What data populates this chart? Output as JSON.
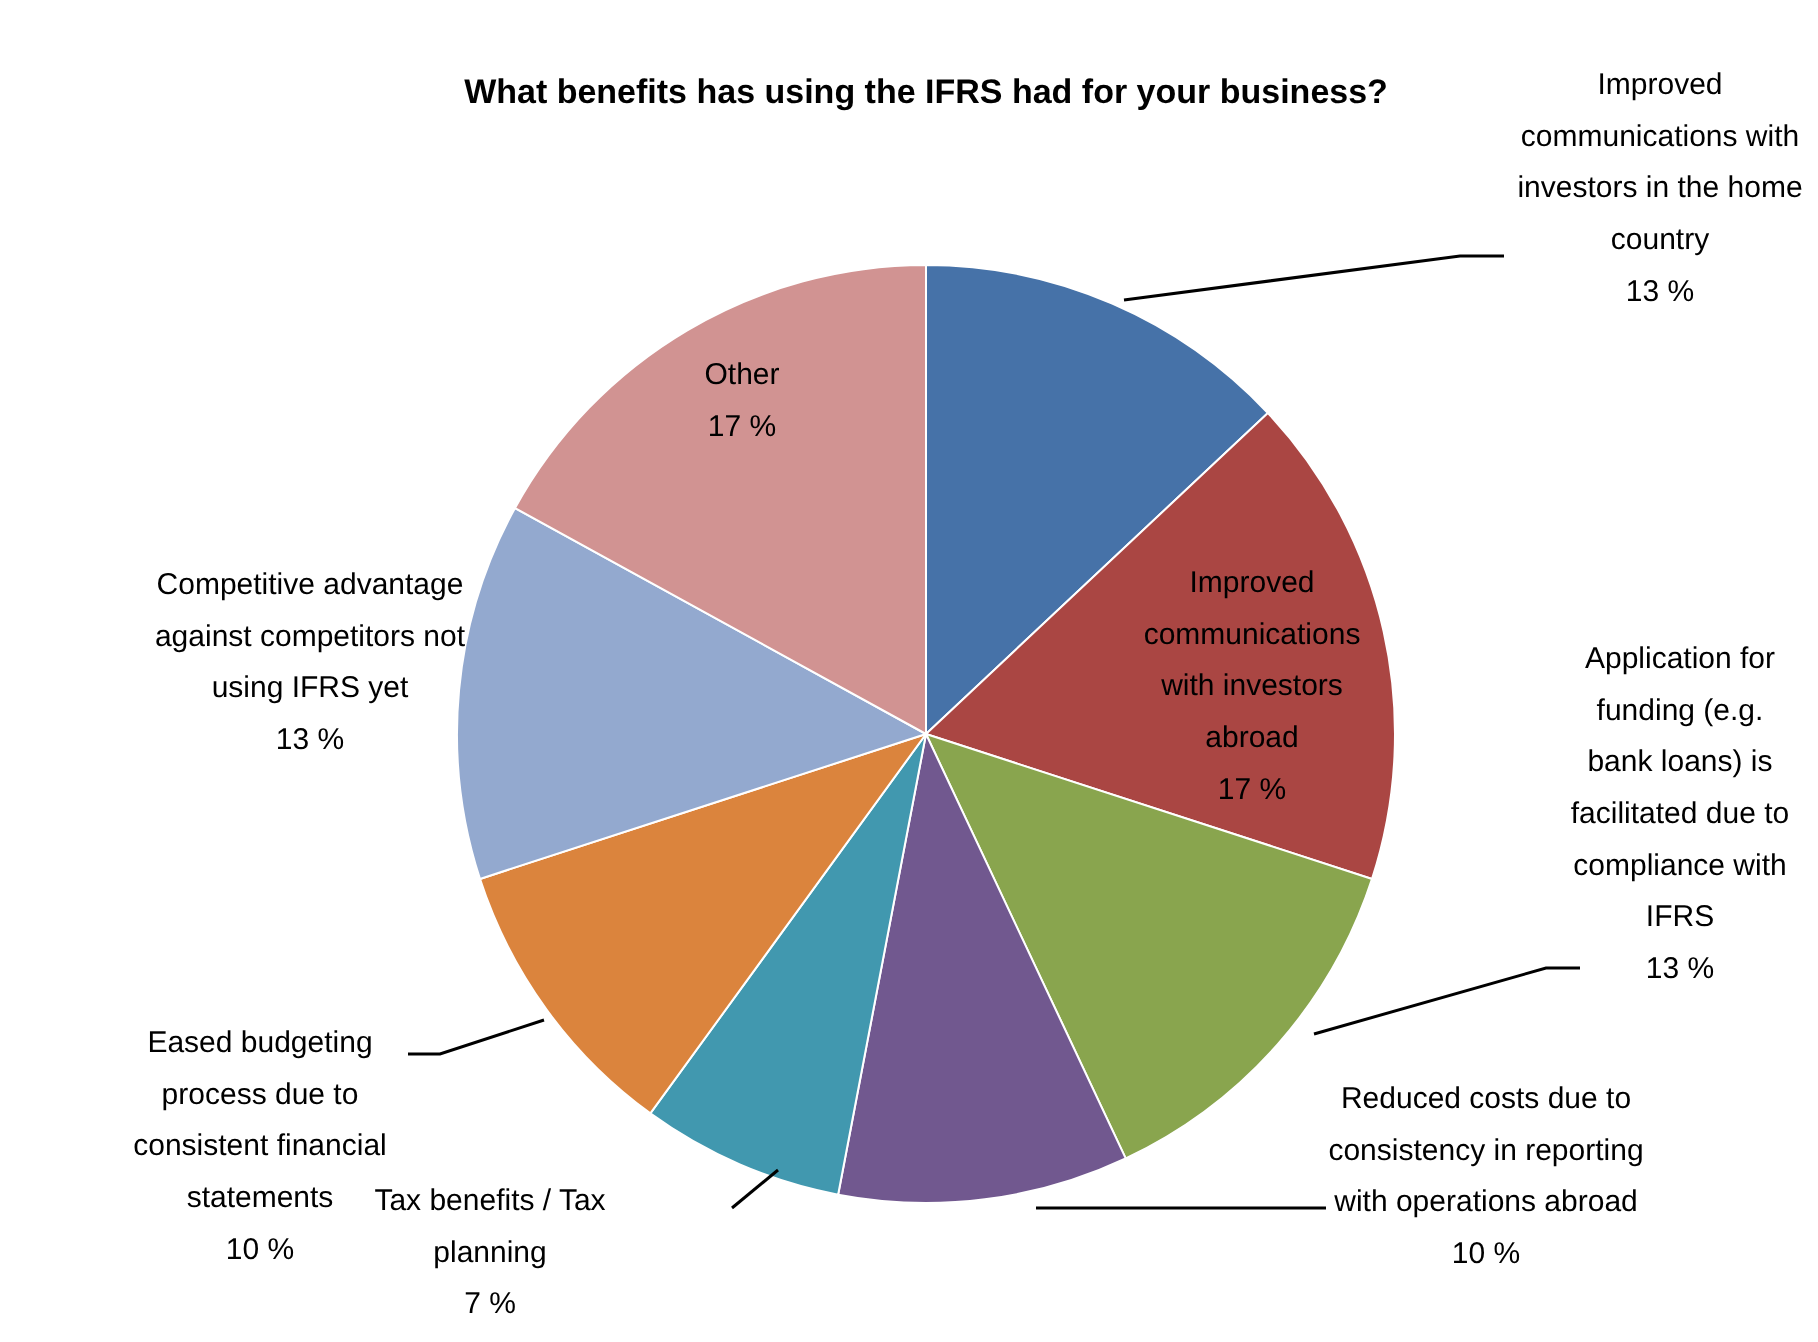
{
  "chart_data": {
    "type": "pie",
    "title": "What benefits has using the IFRS had for your business?",
    "categories": [
      "Improved communications with investors in the home country",
      "Improved communications with investors abroad",
      "Application for funding (e.g. bank loans) is facilitated due to compliance with IFRS",
      "Reduced costs due to consistency in reporting with operations abroad",
      "Tax benefits / Tax planning",
      "Eased budgeting process due to consistent financial statements",
      "Competitive advantage against competitors not using IFRS yet",
      "Other"
    ],
    "values": [
      13,
      17,
      13,
      10,
      7,
      10,
      13,
      17
    ],
    "value_labels": [
      "13 %",
      "17 %",
      "13 %",
      "10 %",
      "7 %",
      "10 %",
      "13 %",
      "17 %"
    ],
    "colors": [
      "#4672a8",
      "#aa4643",
      "#89a54e",
      "#71588f",
      "#4198af",
      "#db843d",
      "#93a9cf",
      "#d19392"
    ],
    "legend": false
  }
}
